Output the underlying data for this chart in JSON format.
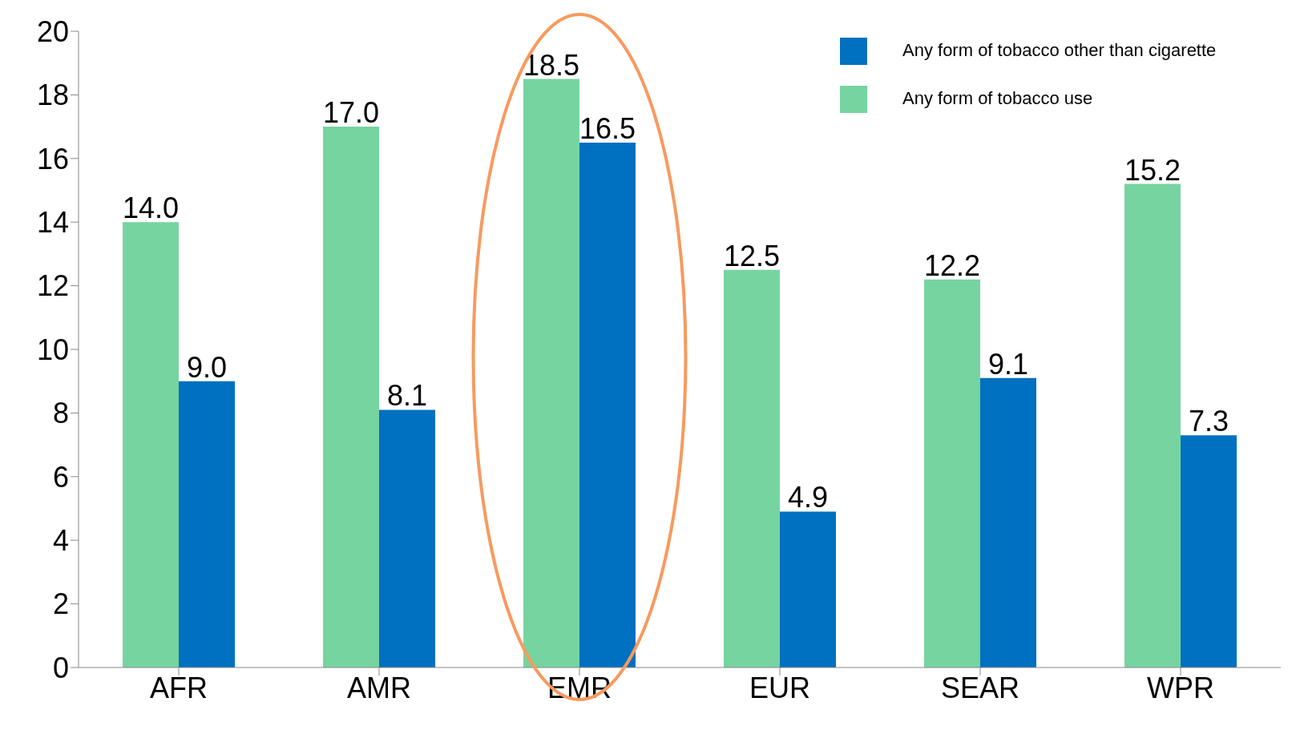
{
  "chart_data": {
    "type": "bar",
    "categories": [
      "AFR",
      "AMR",
      "EMR",
      "EUR",
      "SEAR",
      "WPR"
    ],
    "series": [
      {
        "name": "Any form of tobacco use",
        "color": "#76d4a0",
        "values": [
          14,
          17,
          18.5,
          12.5,
          12.2,
          15.2
        ],
        "value_labels": [
          "14.0",
          "17.0",
          "18.5",
          "12.5",
          "12.2",
          "15.2"
        ]
      },
      {
        "name": "Any form of tobacco other than cigarette",
        "color": "#0070c0",
        "values": [
          9,
          8.1,
          16.5,
          4.9,
          9.1,
          7.3
        ],
        "value_labels": [
          "9.0",
          "8.1",
          "16.5",
          "4.9",
          "9.1",
          "7.3"
        ]
      }
    ],
    "ylim": [
      0,
      20
    ],
    "yticks": [
      0,
      2,
      4,
      6,
      8,
      10,
      12,
      14,
      16,
      18,
      20
    ],
    "legend": "top right"
  }
}
